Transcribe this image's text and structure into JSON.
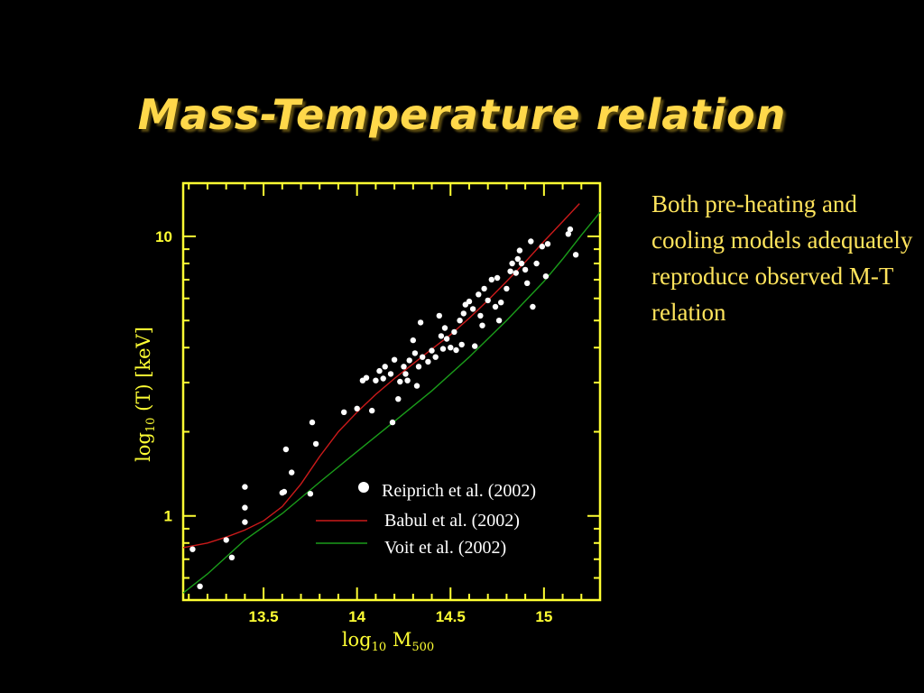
{
  "slide": {
    "title": "Mass-Temperature relation",
    "side_text": "Both pre-heating and cooling models adequately reproduce observed M-T relation"
  },
  "colors": {
    "background": "#000000",
    "title": "#ffd84a",
    "axis": "#ffff33",
    "side_text": "#ffe45c",
    "babul": "#cc1a1a",
    "voit": "#1a9c1a",
    "points": "#ffffff"
  },
  "chart_data": {
    "type": "scatter",
    "xlabel": "log",
    "xlabel_sub": "10",
    "xlabel_tail": " M",
    "xlabel_tail_sub": "500",
    "ylabel": "log",
    "ylabel_sub": "10",
    "ylabel_tail": " (T) [keV]",
    "x_scale": "linear",
    "y_scale": "log",
    "xlim": [
      13.07,
      15.3
    ],
    "ylim": [
      0.5,
      15.5
    ],
    "x_ticks": [
      13.5,
      14,
      14.5,
      15
    ],
    "x_tick_labels": [
      "13.5",
      "14",
      "14.5",
      "15"
    ],
    "y_ticks": [
      1,
      10
    ],
    "y_tick_labels": [
      "1",
      "10"
    ],
    "legend_position": "bottom-right",
    "series": [
      {
        "name": "Reiprich et al. (2002)",
        "kind": "scatter",
        "color": "#ffffff",
        "points": [
          [
            13.12,
            0.76
          ],
          [
            13.16,
            0.56
          ],
          [
            13.3,
            0.82
          ],
          [
            13.33,
            0.71
          ],
          [
            13.4,
            1.27
          ],
          [
            13.4,
            1.07
          ],
          [
            13.4,
            0.95
          ],
          [
            13.6,
            1.21
          ],
          [
            13.61,
            1.22
          ],
          [
            13.62,
            1.73
          ],
          [
            13.65,
            1.43
          ],
          [
            13.75,
            1.2
          ],
          [
            13.76,
            2.16
          ],
          [
            13.78,
            1.81
          ],
          [
            13.93,
            2.35
          ],
          [
            14.0,
            2.42
          ],
          [
            14.03,
            3.05
          ],
          [
            14.05,
            3.12
          ],
          [
            14.08,
            2.38
          ],
          [
            14.1,
            3.05
          ],
          [
            14.12,
            3.3
          ],
          [
            14.14,
            3.1
          ],
          [
            14.15,
            3.42
          ],
          [
            14.18,
            3.22
          ],
          [
            14.19,
            2.16
          ],
          [
            14.2,
            3.62
          ],
          [
            14.22,
            2.62
          ],
          [
            14.23,
            3.02
          ],
          [
            14.25,
            3.42
          ],
          [
            14.26,
            3.22
          ],
          [
            14.27,
            3.05
          ],
          [
            14.28,
            3.6
          ],
          [
            14.3,
            4.25
          ],
          [
            14.31,
            3.82
          ],
          [
            14.32,
            2.92
          ],
          [
            14.33,
            3.42
          ],
          [
            14.34,
            4.92
          ],
          [
            14.35,
            3.7
          ],
          [
            14.38,
            3.56
          ],
          [
            14.4,
            3.9
          ],
          [
            14.42,
            3.7
          ],
          [
            14.44,
            5.2
          ],
          [
            14.45,
            4.4
          ],
          [
            14.46,
            3.96
          ],
          [
            14.47,
            4.7
          ],
          [
            14.48,
            4.3
          ],
          [
            14.5,
            4.0
          ],
          [
            14.52,
            4.55
          ],
          [
            14.53,
            3.92
          ],
          [
            14.55,
            5.0
          ],
          [
            14.56,
            4.1
          ],
          [
            14.57,
            5.3
          ],
          [
            14.58,
            5.7
          ],
          [
            14.6,
            5.85
          ],
          [
            14.62,
            5.5
          ],
          [
            14.63,
            4.05
          ],
          [
            14.65,
            6.2
          ],
          [
            14.66,
            5.2
          ],
          [
            14.67,
            4.8
          ],
          [
            14.68,
            6.5
          ],
          [
            14.7,
            5.9
          ],
          [
            14.72,
            7.0
          ],
          [
            14.74,
            5.6
          ],
          [
            14.75,
            7.1
          ],
          [
            14.76,
            5.0
          ],
          [
            14.77,
            5.8
          ],
          [
            14.8,
            6.5
          ],
          [
            14.82,
            7.5
          ],
          [
            14.83,
            8.0
          ],
          [
            14.85,
            7.4
          ],
          [
            14.86,
            8.3
          ],
          [
            14.87,
            8.9
          ],
          [
            14.88,
            8.0
          ],
          [
            14.9,
            7.6
          ],
          [
            14.91,
            6.8
          ],
          [
            14.93,
            9.6
          ],
          [
            14.94,
            5.6
          ],
          [
            14.96,
            8.0
          ],
          [
            14.99,
            9.2
          ],
          [
            15.01,
            7.2
          ],
          [
            15.02,
            9.4
          ],
          [
            15.13,
            10.2
          ],
          [
            15.14,
            10.6
          ],
          [
            15.17,
            8.6
          ]
        ]
      },
      {
        "name": "Babul et al. (2002)",
        "kind": "line",
        "color": "#cc1a1a",
        "points": [
          [
            13.07,
            0.77
          ],
          [
            13.2,
            0.8
          ],
          [
            13.3,
            0.84
          ],
          [
            13.4,
            0.89
          ],
          [
            13.5,
            0.96
          ],
          [
            13.6,
            1.08
          ],
          [
            13.7,
            1.3
          ],
          [
            13.8,
            1.63
          ],
          [
            13.9,
            2.0
          ],
          [
            14.0,
            2.35
          ],
          [
            14.1,
            2.72
          ],
          [
            14.2,
            3.1
          ],
          [
            14.3,
            3.5
          ],
          [
            14.4,
            3.95
          ],
          [
            14.5,
            4.45
          ],
          [
            14.6,
            5.1
          ],
          [
            14.7,
            5.9
          ],
          [
            14.8,
            6.9
          ],
          [
            14.9,
            8.1
          ],
          [
            15.0,
            9.6
          ],
          [
            15.1,
            11.3
          ],
          [
            15.19,
            13.1
          ]
        ]
      },
      {
        "name": "Voit et al. (2002)",
        "kind": "line",
        "color": "#1a9c1a",
        "points": [
          [
            13.07,
            0.53
          ],
          [
            13.2,
            0.62
          ],
          [
            13.4,
            0.82
          ],
          [
            13.6,
            1.02
          ],
          [
            13.8,
            1.32
          ],
          [
            14.0,
            1.7
          ],
          [
            14.2,
            2.18
          ],
          [
            14.4,
            2.8
          ],
          [
            14.6,
            3.7
          ],
          [
            14.8,
            5.0
          ],
          [
            15.0,
            6.9
          ],
          [
            15.1,
            8.3
          ],
          [
            15.2,
            10.1
          ],
          [
            15.3,
            12.2
          ]
        ]
      }
    ]
  }
}
